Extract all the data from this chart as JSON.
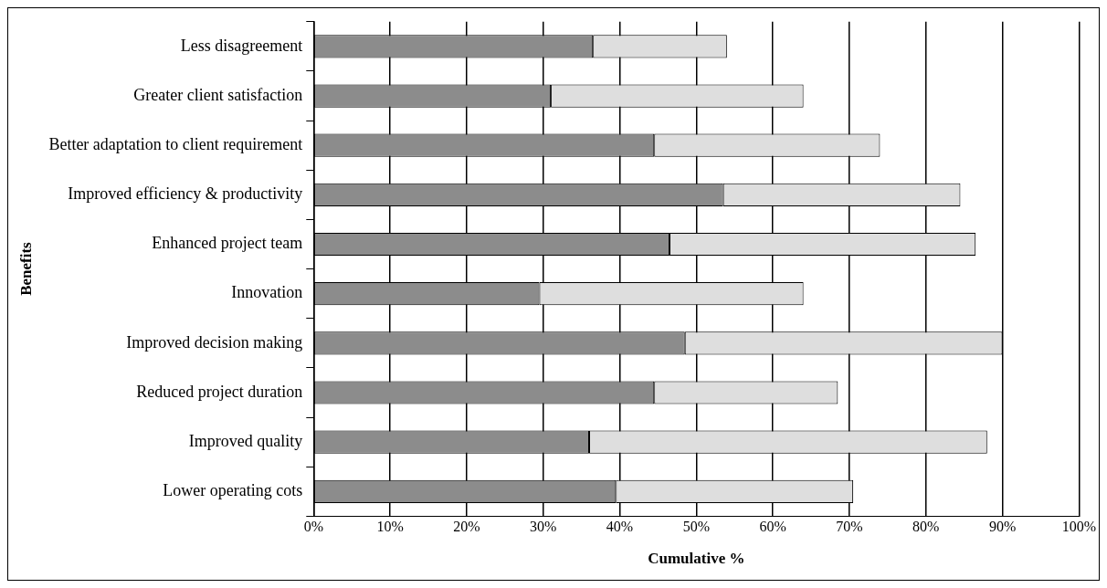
{
  "chart_data": {
    "type": "bar",
    "orientation": "horizontal",
    "stacked": true,
    "ylabel": "Benefits",
    "xlabel": "Cumulative %",
    "categories": [
      "Less disagreement",
      "Greater client satisfaction",
      "Better adaptation to client requirement",
      "Improved efficiency & productivity",
      "Enhanced project team",
      "Innovation",
      "Improved decision making",
      "Reduced project duration",
      "Improved quality",
      "Lower operating cots"
    ],
    "series": [
      {
        "color": "#8c8c8c",
        "values": [
          36.5,
          31,
          44.5,
          53.5,
          46.5,
          29.5,
          48.5,
          44.5,
          36,
          39.5
        ]
      },
      {
        "color": "#dedede",
        "values": [
          17.5,
          33,
          29.5,
          31,
          40,
          34.5,
          41.5,
          24,
          52,
          31
        ]
      }
    ],
    "xlim": [
      0,
      100
    ],
    "xticks": [
      {
        "value": 0,
        "label": "0%"
      },
      {
        "value": 10,
        "label": "10%"
      },
      {
        "value": 20,
        "label": "20%"
      },
      {
        "value": 30,
        "label": "30%"
      },
      {
        "value": 40,
        "label": "40%"
      },
      {
        "value": 50,
        "label": "50%"
      },
      {
        "value": 60,
        "label": "60%"
      },
      {
        "value": 70,
        "label": "70%"
      },
      {
        "value": 80,
        "label": "80%"
      },
      {
        "value": 90,
        "label": "90%"
      },
      {
        "value": 100,
        "label": "100%"
      }
    ],
    "grid": "x",
    "legend": false
  }
}
